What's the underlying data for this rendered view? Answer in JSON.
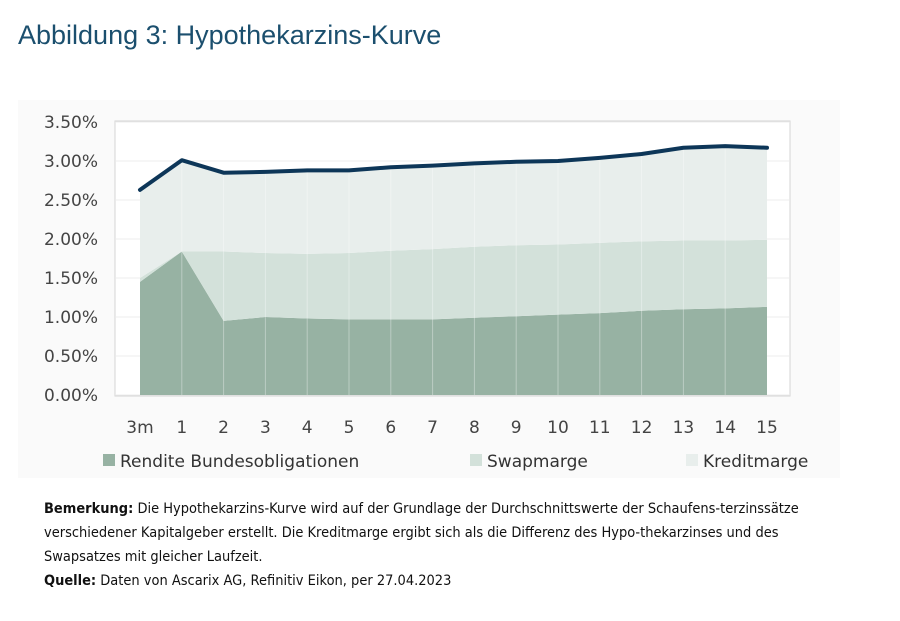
{
  "title": "Abbildung 3: Hypothekarzins-Kurve",
  "chart_data": {
    "type": "area",
    "stacked": true,
    "categories": [
      "3m",
      "1",
      "2",
      "3",
      "4",
      "5",
      "6",
      "7",
      "8",
      "9",
      "10",
      "11",
      "12",
      "13",
      "14",
      "15"
    ],
    "ylim": [
      0,
      3.5
    ],
    "yticks": [
      "0.00%",
      "0.50%",
      "1.00%",
      "1.50%",
      "2.00%",
      "2.50%",
      "3.00%",
      "3.50%"
    ],
    "grid": true,
    "legend_position": "bottom",
    "series": [
      {
        "name": "Rendite Bundesobligationen",
        "color": "#97b2a3",
        "values": [
          1.45,
          1.84,
          0.95,
          1.0,
          0.98,
          0.97,
          0.97,
          0.97,
          0.99,
          1.01,
          1.03,
          1.05,
          1.08,
          1.1,
          1.11,
          1.13
        ]
      },
      {
        "name": "Swapmarge",
        "color": "#d3e1da",
        "values": [
          0.05,
          0.0,
          0.89,
          0.82,
          0.83,
          0.85,
          0.88,
          0.9,
          0.91,
          0.91,
          0.9,
          0.9,
          0.89,
          0.88,
          0.87,
          0.86
        ]
      },
      {
        "name": "Kreditmarge",
        "color": "#e8eeec",
        "values": [
          1.13,
          1.17,
          1.01,
          1.04,
          1.07,
          1.06,
          1.07,
          1.07,
          1.07,
          1.07,
          1.07,
          1.09,
          1.12,
          1.19,
          1.21,
          1.18
        ]
      }
    ],
    "total_line": {
      "color": "#0d3658",
      "values": [
        2.63,
        3.01,
        2.85,
        2.86,
        2.88,
        2.88,
        2.92,
        2.94,
        2.97,
        2.99,
        3.0,
        3.04,
        3.09,
        3.17,
        3.19,
        3.17
      ]
    }
  },
  "notes": {
    "remark_label": "Bemerkung:",
    "remark_text": " Die Hypothekarzins-Kurve wird auf der Grundlage der Durchschnittswerte der Schaufens-terzinssätze verschiedener Kapitalgeber erstellt. Die Kreditmarge ergibt sich als die Differenz des Hypo-thekarzinses und des Swapsatzes mit gleicher Laufzeit.",
    "source_label": "Quelle:",
    "source_text": " Daten von Ascarix AG, Refinitiv Eikon, per 27.04.2023"
  }
}
